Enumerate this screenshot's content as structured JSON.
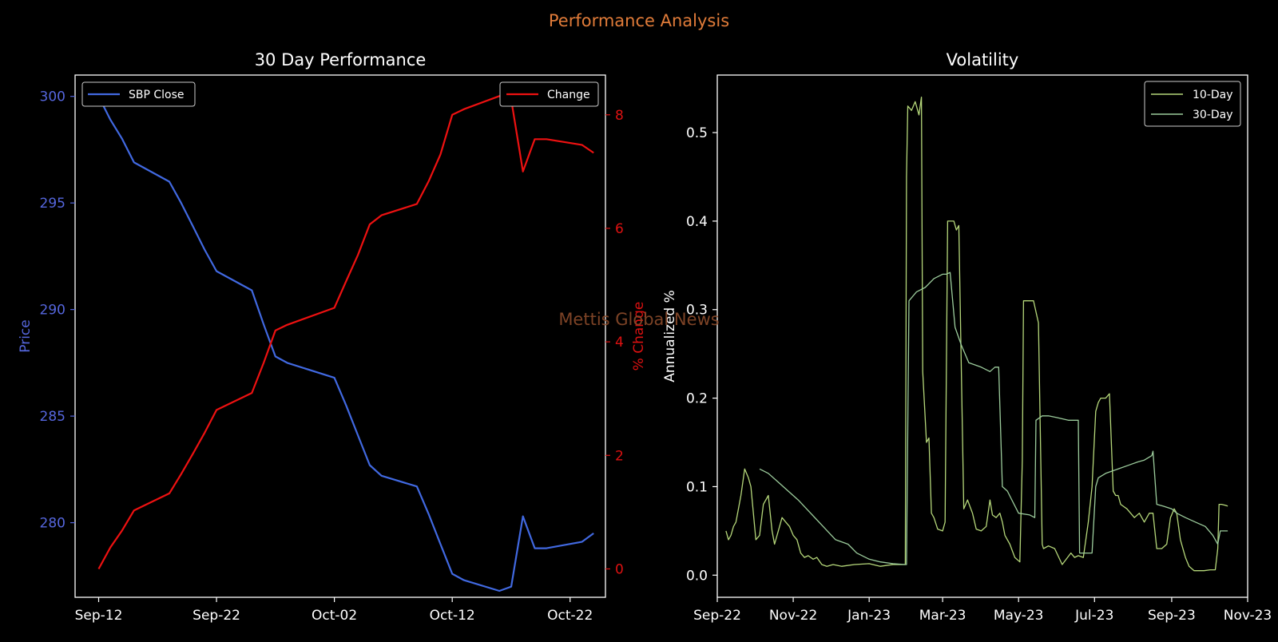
{
  "suptitle": "Performance Analysis",
  "watermark": "Mettis Global News",
  "colors": {
    "background": "#000000",
    "suptitle": "#e07b39",
    "axes_frame": "#ffffff",
    "text": "#ffffff",
    "price_axis": "#5566dd",
    "change_axis": "#dd1111",
    "price_line": "#4169e1",
    "change_line": "#ee1111",
    "vol10": "#b5d77a",
    "vol30": "#9ccc9c",
    "watermark": "#8b4a2a",
    "legend_border": "#cccccc"
  },
  "chart_data": [
    {
      "type": "line",
      "title": "30 Day Performance",
      "xlabel": "",
      "ylabel": "Price",
      "ylabel_right": "% Change",
      "x_ticks": [
        "Sep-12",
        "Sep-22",
        "Oct-02",
        "Oct-12",
        "Oct-22"
      ],
      "xlim": [
        "2023-09-10",
        "2023-10-25"
      ],
      "ylim": [
        276.5,
        301.0
      ],
      "ylim_right": [
        -0.5,
        8.7
      ],
      "y_ticks": [
        280,
        285,
        290,
        295,
        300
      ],
      "y_ticks_right": [
        0,
        2,
        4,
        6,
        8
      ],
      "legend_left": "top-left",
      "legend_right": "top-right",
      "grid": false,
      "series": [
        {
          "name": "SBP Close",
          "axis": "left",
          "x": [
            "2023-09-12",
            "2023-09-13",
            "2023-09-14",
            "2023-09-15",
            "2023-09-18",
            "2023-09-19",
            "2023-09-20",
            "2023-09-21",
            "2023-09-22",
            "2023-09-25",
            "2023-09-26",
            "2023-09-27",
            "2023-09-28",
            "2023-10-02",
            "2023-10-03",
            "2023-10-04",
            "2023-10-05",
            "2023-10-06",
            "2023-10-09",
            "2023-10-10",
            "2023-10-11",
            "2023-10-12",
            "2023-10-13",
            "2023-10-16",
            "2023-10-17",
            "2023-10-18",
            "2023-10-19",
            "2023-10-20",
            "2023-10-23",
            "2023-10-24"
          ],
          "values": [
            300.0,
            298.9,
            298.0,
            296.9,
            296.0,
            295.0,
            293.9,
            292.8,
            291.8,
            290.9,
            289.3,
            287.8,
            287.5,
            286.8,
            285.5,
            284.1,
            282.7,
            282.2,
            281.7,
            280.4,
            279.0,
            277.6,
            277.3,
            276.8,
            277.0,
            280.3,
            278.8,
            278.8,
            279.1,
            279.5
          ]
        },
        {
          "name": "Change",
          "axis": "right",
          "x": [
            "2023-09-12",
            "2023-09-13",
            "2023-09-14",
            "2023-09-15",
            "2023-09-18",
            "2023-09-19",
            "2023-09-20",
            "2023-09-21",
            "2023-09-22",
            "2023-09-25",
            "2023-09-26",
            "2023-09-27",
            "2023-09-28",
            "2023-10-02",
            "2023-10-03",
            "2023-10-04",
            "2023-10-05",
            "2023-10-06",
            "2023-10-09",
            "2023-10-10",
            "2023-10-11",
            "2023-10-12",
            "2023-10-13",
            "2023-10-16",
            "2023-10-17",
            "2023-10-18",
            "2023-10-19",
            "2023-10-20",
            "2023-10-23",
            "2023-10-24"
          ],
          "values": [
            0.0,
            0.38,
            0.68,
            1.03,
            1.33,
            1.67,
            2.03,
            2.4,
            2.8,
            3.1,
            3.63,
            4.2,
            4.3,
            4.6,
            5.07,
            5.53,
            6.07,
            6.23,
            6.43,
            6.83,
            7.3,
            8.0,
            8.1,
            8.33,
            8.27,
            7.0,
            7.57,
            7.57,
            7.47,
            7.33
          ]
        }
      ]
    },
    {
      "type": "line",
      "title": "Volatility",
      "xlabel": "",
      "ylabel": "Annualized %",
      "x_ticks": [
        "Sep-22",
        "Nov-22",
        "Jan-23",
        "Mar-23",
        "May-23",
        "Jul-23",
        "Sep-23",
        "Nov-23"
      ],
      "xlim": [
        "2022-09-01",
        "2023-11-01"
      ],
      "ylim": [
        -0.025,
        0.565
      ],
      "y_ticks": [
        0.0,
        0.1,
        0.2,
        0.3,
        0.4,
        0.5
      ],
      "legend": "top-right",
      "grid": false,
      "series": [
        {
          "name": "10-Day",
          "x": [
            "2022-09-08",
            "2022-09-10",
            "2022-09-12",
            "2022-09-14",
            "2022-09-16",
            "2022-09-20",
            "2022-09-23",
            "2022-09-26",
            "2022-09-28",
            "2022-10-02",
            "2022-10-05",
            "2022-10-08",
            "2022-10-12",
            "2022-10-15",
            "2022-10-17",
            "2022-10-20",
            "2022-10-23",
            "2022-10-26",
            "2022-10-29",
            "2022-11-01",
            "2022-11-04",
            "2022-11-07",
            "2022-11-10",
            "2022-11-13",
            "2022-11-17",
            "2022-11-20",
            "2022-11-24",
            "2022-11-28",
            "2022-12-03",
            "2022-12-10",
            "2022-12-20",
            "2023-01-01",
            "2023-01-10",
            "2023-01-20",
            "2023-01-30",
            "2023-01-31",
            "2023-02-01",
            "2023-02-04",
            "2023-02-07",
            "2023-02-10",
            "2023-02-12",
            "2023-02-13",
            "2023-02-16",
            "2023-02-18",
            "2023-02-20",
            "2023-02-22",
            "2023-02-25",
            "2023-03-01",
            "2023-03-03",
            "2023-03-05",
            "2023-03-08",
            "2023-03-10",
            "2023-03-12",
            "2023-03-14",
            "2023-03-18",
            "2023-03-21",
            "2023-03-25",
            "2023-03-28",
            "2023-04-01",
            "2023-04-05",
            "2023-04-08",
            "2023-04-10",
            "2023-04-13",
            "2023-04-16",
            "2023-04-18",
            "2023-04-20",
            "2023-04-24",
            "2023-04-28",
            "2023-05-02",
            "2023-05-04",
            "2023-05-05",
            "2023-05-07",
            "2023-05-10",
            "2023-05-13",
            "2023-05-17",
            "2023-05-20",
            "2023-05-21",
            "2023-05-25",
            "2023-05-30",
            "2023-06-05",
            "2023-06-12",
            "2023-06-15",
            "2023-06-18",
            "2023-06-22",
            "2023-06-26",
            "2023-06-29",
            "2023-07-02",
            "2023-07-04",
            "2023-07-06",
            "2023-07-10",
            "2023-07-13",
            "2023-07-16",
            "2023-07-18",
            "2023-07-20",
            "2023-07-22",
            "2023-07-27",
            "2023-08-02",
            "2023-08-06",
            "2023-08-10",
            "2023-08-14",
            "2023-08-17",
            "2023-08-20",
            "2023-08-24",
            "2023-08-28",
            "2023-08-31",
            "2023-09-03",
            "2023-09-05",
            "2023-09-08",
            "2023-09-12",
            "2023-09-15",
            "2023-09-19",
            "2023-09-23",
            "2023-09-27",
            "2023-10-02",
            "2023-10-06",
            "2023-10-08",
            "2023-10-09",
            "2023-10-11",
            "2023-10-14",
            "2023-10-16"
          ],
          "values": [
            0.05,
            0.04,
            0.045,
            0.055,
            0.06,
            0.09,
            0.12,
            0.11,
            0.1,
            0.04,
            0.045,
            0.08,
            0.09,
            0.05,
            0.035,
            0.05,
            0.065,
            0.06,
            0.055,
            0.045,
            0.04,
            0.025,
            0.02,
            0.022,
            0.018,
            0.02,
            0.012,
            0.01,
            0.012,
            0.01,
            0.012,
            0.013,
            0.01,
            0.012,
            0.012,
            0.45,
            0.53,
            0.525,
            0.535,
            0.52,
            0.54,
            0.23,
            0.15,
            0.155,
            0.07,
            0.065,
            0.052,
            0.05,
            0.06,
            0.4,
            0.4,
            0.4,
            0.39,
            0.395,
            0.075,
            0.085,
            0.07,
            0.052,
            0.05,
            0.055,
            0.085,
            0.068,
            0.065,
            0.07,
            0.06,
            0.045,
            0.035,
            0.02,
            0.015,
            0.13,
            0.31,
            0.31,
            0.31,
            0.31,
            0.285,
            0.035,
            0.03,
            0.033,
            0.03,
            0.012,
            0.025,
            0.02,
            0.022,
            0.02,
            0.06,
            0.1,
            0.185,
            0.195,
            0.2,
            0.2,
            0.205,
            0.095,
            0.09,
            0.09,
            0.08,
            0.075,
            0.065,
            0.07,
            0.06,
            0.07,
            0.07,
            0.03,
            0.03,
            0.035,
            0.065,
            0.075,
            0.07,
            0.04,
            0.02,
            0.01,
            0.005,
            0.005,
            0.005,
            0.006,
            0.006,
            0.03,
            0.08,
            0.08,
            0.079,
            0.078
          ]
        },
        {
          "name": "30-Day",
          "x": [
            "2022-10-05",
            "2022-10-12",
            "2022-10-20",
            "2022-10-28",
            "2022-11-05",
            "2022-11-15",
            "2022-11-25",
            "2022-12-05",
            "2022-12-15",
            "2022-12-22",
            "2023-01-01",
            "2023-01-10",
            "2023-01-20",
            "2023-01-30",
            "2023-01-31",
            "2023-02-02",
            "2023-02-08",
            "2023-02-15",
            "2023-02-22",
            "2023-03-01",
            "2023-03-04",
            "2023-03-07",
            "2023-03-11",
            "2023-03-16",
            "2023-03-22",
            "2023-04-01",
            "2023-04-08",
            "2023-04-12",
            "2023-04-15",
            "2023-04-18",
            "2023-04-22",
            "2023-05-01",
            "2023-05-10",
            "2023-05-14",
            "2023-05-15",
            "2023-05-20",
            "2023-05-25",
            "2023-06-01",
            "2023-06-10",
            "2023-06-15",
            "2023-06-18",
            "2023-06-19",
            "2023-06-25",
            "2023-06-29",
            "2023-07-02",
            "2023-07-04",
            "2023-07-10",
            "2023-07-20",
            "2023-07-30",
            "2023-08-05",
            "2023-08-10",
            "2023-08-16",
            "2023-08-17",
            "2023-08-20",
            "2023-08-25",
            "2023-09-01",
            "2023-09-05",
            "2023-09-12",
            "2023-09-20",
            "2023-09-28",
            "2023-10-04",
            "2023-10-08",
            "2023-10-10",
            "2023-10-16"
          ],
          "values": [
            0.12,
            0.115,
            0.105,
            0.095,
            0.085,
            0.07,
            0.055,
            0.04,
            0.035,
            0.025,
            0.018,
            0.015,
            0.013,
            0.012,
            0.012,
            0.31,
            0.32,
            0.325,
            0.335,
            0.34,
            0.34,
            0.342,
            0.28,
            0.26,
            0.24,
            0.235,
            0.23,
            0.235,
            0.235,
            0.1,
            0.095,
            0.07,
            0.068,
            0.065,
            0.175,
            0.18,
            0.18,
            0.178,
            0.175,
            0.175,
            0.175,
            0.025,
            0.025,
            0.025,
            0.1,
            0.11,
            0.115,
            0.12,
            0.125,
            0.128,
            0.13,
            0.135,
            0.14,
            0.08,
            0.078,
            0.075,
            0.07,
            0.065,
            0.06,
            0.055,
            0.045,
            0.035,
            0.05,
            0.05
          ]
        }
      ]
    }
  ]
}
